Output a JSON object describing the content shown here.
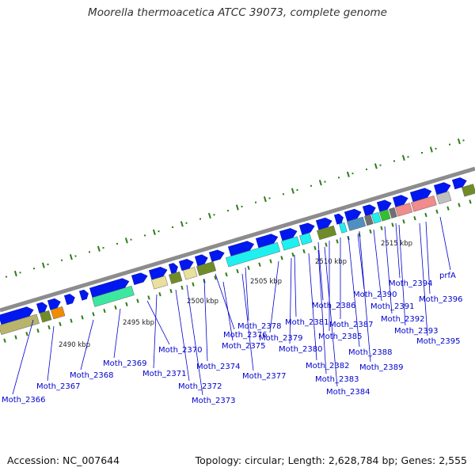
{
  "title": "Moorella thermoacetica ATCC 39073, complete genome",
  "footer": {
    "accession": "Accession: NC_007644",
    "summary": "Topology: circular; Length: 2,628,784 bp; Genes: 2,555"
  },
  "colors": {
    "backbone": "#8c8c8c",
    "forward_gene": "#0018f0",
    "tick": "#2e7d19",
    "label": "#0000cc"
  },
  "scale_ticks": [
    "2490 kbp",
    "2495 kbp",
    "2500 kbp",
    "2505 kbp",
    "2510 kbp",
    "2515 kbp"
  ],
  "genes": [
    {
      "label": "Moth_2366",
      "color": "#b8b46c"
    },
    {
      "label": "Moth_2367",
      "color": "#f08c00"
    },
    {
      "label": "Moth_2368",
      "color": "#0018f0"
    },
    {
      "label": "Moth_2369",
      "color": "#3ce8a0"
    },
    {
      "label": "Moth_2370",
      "color": "#0018f0"
    },
    {
      "label": "Moth_2371",
      "color": "#e8e09c"
    },
    {
      "label": "Moth_2372",
      "color": "#708c28"
    },
    {
      "label": "Moth_2373",
      "color": "#e8e09c"
    },
    {
      "label": "Moth_2374",
      "color": "#708c28"
    },
    {
      "label": "Moth_2375",
      "color": "#0018f0"
    },
    {
      "label": "Moth_2376",
      "color": "#0018f0"
    },
    {
      "label": "Moth_2377",
      "color": "#0018f0"
    },
    {
      "label": "Moth_2378",
      "color": "#1ef0f0"
    },
    {
      "label": "Moth_2379",
      "color": "#1ef0f0"
    },
    {
      "label": "Moth_2380",
      "color": "#1ef0f0"
    },
    {
      "label": "Moth_2381",
      "color": "#0018f0"
    },
    {
      "label": "Moth_2382",
      "color": "#708c28"
    },
    {
      "label": "Moth_2383",
      "color": "#0018f0"
    },
    {
      "label": "Moth_2384",
      "color": "#0018f0"
    },
    {
      "label": "Moth_2385",
      "color": "#1ef0f0"
    },
    {
      "label": "Moth_2386",
      "color": "#0018f0"
    },
    {
      "label": "Moth_2387",
      "color": "#5090c0"
    },
    {
      "label": "Moth_2388",
      "color": "#707070"
    },
    {
      "label": "Moth_2389",
      "color": "#1ef0f0"
    },
    {
      "label": "Moth_2390",
      "color": "#30c030"
    },
    {
      "label": "Moth_2391",
      "color": "#0018f0"
    },
    {
      "label": "Moth_2392",
      "color": "#707070"
    },
    {
      "label": "Moth_2393",
      "color": "#f08c8c"
    },
    {
      "label": "Moth_2394",
      "color": "#0018f0"
    },
    {
      "label": "Moth_2395",
      "color": "#f08c8c"
    },
    {
      "label": "Moth_2396",
      "color": "#c0c0c0"
    },
    {
      "label": "prfA",
      "color": "#0018f0"
    }
  ]
}
